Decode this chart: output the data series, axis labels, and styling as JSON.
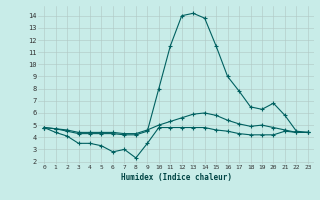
{
  "xlabel": "Humidex (Indice chaleur)",
  "bg_color": "#c8ece8",
  "grid_color": "#b0c8c4",
  "line_color": "#006060",
  "xlim": [
    -0.5,
    23.5
  ],
  "ylim": [
    1.8,
    14.8
  ],
  "xticks": [
    0,
    1,
    2,
    3,
    4,
    5,
    6,
    7,
    8,
    9,
    10,
    11,
    12,
    13,
    14,
    15,
    16,
    17,
    18,
    19,
    20,
    21,
    22,
    23
  ],
  "yticks": [
    2,
    3,
    4,
    5,
    6,
    7,
    8,
    9,
    10,
    11,
    12,
    13,
    14
  ],
  "line1_x": [
    0,
    1,
    2,
    3,
    4,
    5,
    6,
    7,
    8,
    9,
    10,
    11,
    12,
    13,
    14,
    15,
    16,
    17,
    18,
    19,
    20,
    21,
    22,
    23
  ],
  "line1_y": [
    4.8,
    4.4,
    4.1,
    3.5,
    3.5,
    3.3,
    2.8,
    3.0,
    2.3,
    3.5,
    4.8,
    4.8,
    4.8,
    4.8,
    4.8,
    4.6,
    4.5,
    4.3,
    4.2,
    4.2,
    4.2,
    4.5,
    4.4,
    4.4
  ],
  "line2_x": [
    0,
    1,
    2,
    3,
    4,
    5,
    6,
    7,
    8,
    9,
    10,
    11,
    12,
    13,
    14,
    15,
    16,
    17,
    18,
    19,
    20,
    21,
    22,
    23
  ],
  "line2_y": [
    4.8,
    4.7,
    4.6,
    4.4,
    4.4,
    4.4,
    4.4,
    4.3,
    4.3,
    4.6,
    5.0,
    5.3,
    5.6,
    5.9,
    6.0,
    5.8,
    5.4,
    5.1,
    4.9,
    5.0,
    4.8,
    4.6,
    4.4,
    4.4
  ],
  "line3_x": [
    0,
    1,
    2,
    3,
    4,
    5,
    6,
    7,
    8,
    9,
    10,
    11,
    12,
    13,
    14,
    15,
    16,
    17,
    18,
    19,
    20,
    21,
    22,
    23
  ],
  "line3_y": [
    4.8,
    4.7,
    4.5,
    4.3,
    4.3,
    4.3,
    4.3,
    4.2,
    4.2,
    4.5,
    8.0,
    11.5,
    14.0,
    14.2,
    13.8,
    11.5,
    9.0,
    7.8,
    6.5,
    6.3,
    6.8,
    5.8,
    4.5,
    4.4
  ]
}
